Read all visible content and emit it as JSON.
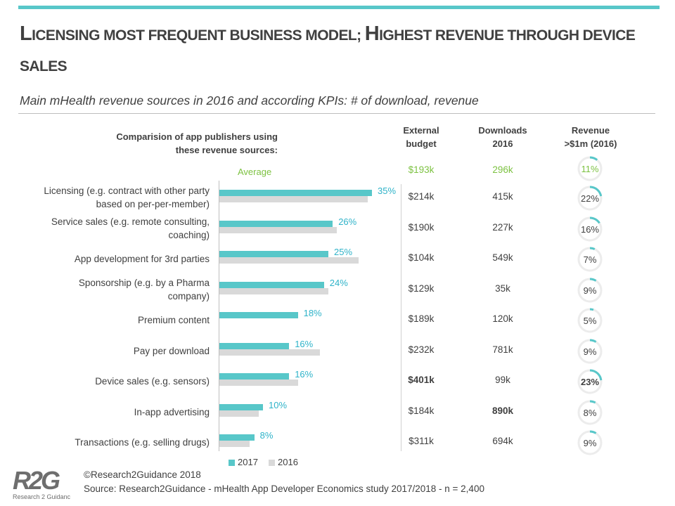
{
  "header": {
    "title_parts": [
      {
        "text": "L",
        "cap": true
      },
      {
        "text": "ICENSING MOST FREQUENT BUSINESS MODEL; ",
        "cap": false
      },
      {
        "text": "H",
        "cap": true
      },
      {
        "text": "IGHEST REVENUE THROUGH DEVICE SALES",
        "cap": false
      }
    ],
    "subtitle": "Main mHealth revenue sources in 2016 and according KPIs: # of download, revenue"
  },
  "columns": {
    "left_header": "Comparision of app publishers using\nthese revenue sources:",
    "budget": "External\nbudget",
    "downloads": "Downloads\n2016",
    "revenue": "Revenue\n>$1m (2016)"
  },
  "average": {
    "label": "Average",
    "budget": "$193k",
    "downloads": "296k",
    "revenue_label": "11%",
    "revenue_value": 11
  },
  "chart_data": {
    "type": "bar",
    "orientation": "horizontal",
    "categories": [
      "Licensing (e.g. contract with other party\nbased on per-per-member)",
      "Service sales (e.g. remote consulting,\ncoaching)",
      "App development for 3rd parties",
      "Sponsorship (e.g. by a Pharma\ncompany)",
      "Premium content",
      "Pay per download",
      "Device sales (e.g. sensors)",
      "In-app advertising",
      "Transactions (e.g. selling drugs)"
    ],
    "series": [
      {
        "name": "2017",
        "values": [
          35,
          26,
          25,
          24,
          18,
          16,
          16,
          10,
          8
        ]
      },
      {
        "name": "2016",
        "values": [
          34,
          27,
          32,
          25,
          null,
          23,
          18,
          9,
          7
        ]
      }
    ],
    "value_labels": [
      "35%",
      "26%",
      "25%",
      "24%",
      "18%",
      "16%",
      "16%",
      "10%",
      "8%"
    ],
    "xlim": [
      0,
      40
    ],
    "legend_position": "bottom-left",
    "colors": {
      "2017": "#58c7c9",
      "2016": "#d9d9d9"
    }
  },
  "table": {
    "budget": [
      "$214k",
      "$190k",
      "$104k",
      "$129k",
      "$189k",
      "$232k",
      "$401k",
      "$184k",
      "$311k"
    ],
    "budget_bold": [
      false,
      false,
      false,
      false,
      false,
      false,
      true,
      false,
      false
    ],
    "downloads": [
      "415k",
      "227k",
      "549k",
      "35k",
      "120k",
      "781k",
      "99k",
      "890k",
      "694k"
    ],
    "downloads_bold": [
      false,
      false,
      false,
      false,
      false,
      false,
      false,
      true,
      false
    ],
    "revenue_labels": [
      "22%",
      "16%",
      "7%",
      "9%",
      "5%",
      "9%",
      "23%",
      "8%",
      "9%"
    ],
    "revenue_values": [
      22,
      16,
      7,
      9,
      5,
      9,
      23,
      8,
      9
    ],
    "revenue_bold": [
      false,
      false,
      false,
      false,
      false,
      false,
      true,
      false,
      false
    ]
  },
  "legend": {
    "item_2017": "2017",
    "item_2016": "2016"
  },
  "footer": {
    "copyright": "©Research2Guidance 2018",
    "source": "Source:  Research2Guidance - mHealth App Developer Economics study 2017/2018 - n = 2,400",
    "logo_text": "R2G",
    "logo_subtext": "Research 2 Guidance"
  },
  "colors": {
    "accent": "#58c7c9",
    "green": "#7dc242",
    "value_label": "#2fb3c9",
    "gray_bar": "#d9d9d9"
  }
}
